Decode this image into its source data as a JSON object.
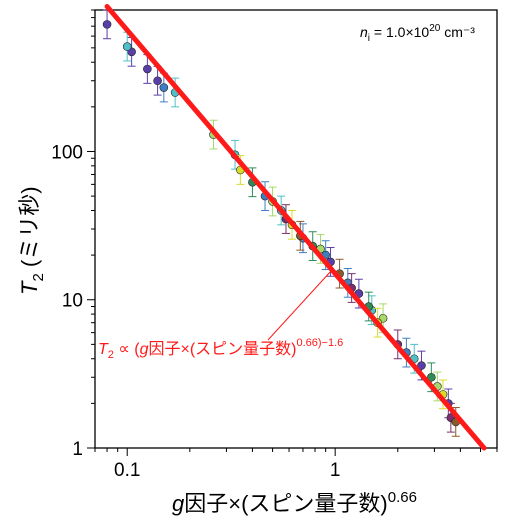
{
  "chart_data": {
    "type": "scatter",
    "scale": "log-log",
    "xlim": [
      0.07,
      6
    ],
    "ylim": [
      1,
      900
    ],
    "x_ticks": [
      {
        "value": 0.1,
        "label": "0.1"
      },
      {
        "value": 1,
        "label": "1"
      }
    ],
    "y_ticks": [
      {
        "value": 1,
        "label": "1"
      },
      {
        "value": 10,
        "label": "10"
      },
      {
        "value": 100,
        "label": "100"
      }
    ],
    "xlabel": {
      "italic": "g",
      "main": "因子×(スピン量子数)",
      "sup": "0.66"
    },
    "ylabel": {
      "italic": "T",
      "sub": "2",
      "main": " (ミリ秒)"
    },
    "annotation": {
      "italic": "n",
      "sub": "i",
      "main": " = 1.0×10",
      "sup": "20",
      "tail": " cm⁻³"
    },
    "fit": {
      "label_parts": {
        "italic1": "T",
        "sub": "2",
        "mid": " ∝ (",
        "italic2": "g",
        "main": "因子×(スピン量子数)",
        "sup": "0.66)−1.6"
      },
      "exponent": -1.6,
      "color": "#ff1a1a",
      "line": [
        [
          0.08,
          950
        ],
        [
          5.2,
          1.0
        ]
      ],
      "pointer_to": [
        0.97,
        16
      ]
    },
    "series": [
      {
        "color": "#5b3fa8",
        "points": [
          [
            0.08,
            720
          ],
          [
            0.105,
            470
          ],
          [
            0.125,
            360
          ],
          [
            0.14,
            300
          ],
          [
            0.95,
            18
          ],
          [
            1.3,
            11
          ],
          [
            2.6,
            3.6
          ],
          [
            3.5,
            2.0
          ]
        ]
      },
      {
        "color": "#3d7fc2",
        "points": [
          [
            0.15,
            270
          ],
          [
            0.46,
            50
          ],
          [
            0.7,
            26
          ],
          [
            0.9,
            20
          ],
          [
            1.15,
            13
          ],
          [
            2.2,
            4.4
          ]
        ]
      },
      {
        "color": "#4ec0c8",
        "points": [
          [
            0.1,
            510
          ],
          [
            0.17,
            250
          ],
          [
            0.33,
            95
          ],
          [
            0.55,
            40
          ],
          [
            1.5,
            8.5
          ],
          [
            2.4,
            4.0
          ]
        ]
      },
      {
        "color": "#a6d96a",
        "points": [
          [
            0.26,
            130
          ],
          [
            0.5,
            46
          ],
          [
            0.85,
            22
          ],
          [
            1.7,
            7.5
          ],
          [
            3.1,
            2.6
          ]
        ]
      },
      {
        "color": "#d7dc2b",
        "points": [
          [
            0.35,
            75
          ],
          [
            0.62,
            32
          ],
          [
            1.6,
            7.0
          ],
          [
            3.3,
            2.3
          ]
        ]
      },
      {
        "color": "#2e8b57",
        "points": [
          [
            0.4,
            62
          ],
          [
            0.78,
            23
          ],
          [
            1.45,
            9.0
          ],
          [
            2.9,
            3.0
          ]
        ]
      },
      {
        "color": "#7b2f6f",
        "points": [
          [
            0.58,
            35
          ],
          [
            1.2,
            12
          ],
          [
            2.0,
            5.0
          ],
          [
            3.6,
            1.6
          ]
        ]
      },
      {
        "color": "#8b5a2b",
        "points": [
          [
            0.68,
            27
          ],
          [
            1.05,
            15
          ],
          [
            3.8,
            1.5
          ]
        ]
      }
    ]
  }
}
